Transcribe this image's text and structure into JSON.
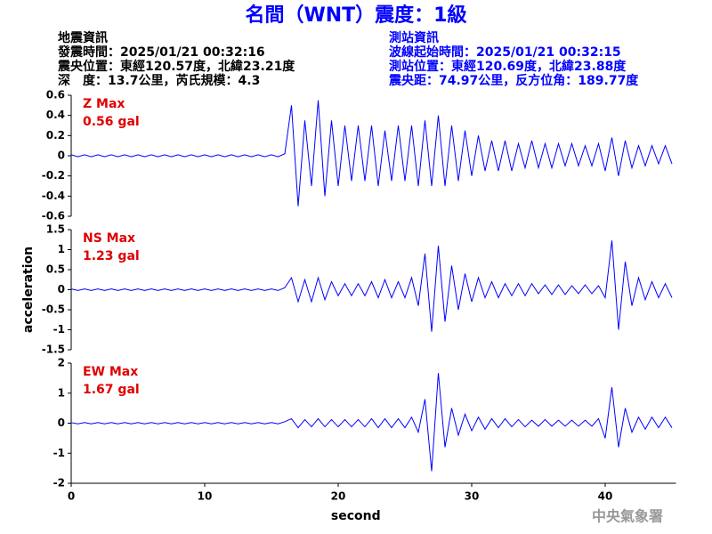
{
  "header": {
    "title": "名間（WNT）震度：1級",
    "left": [
      "地震資訊",
      "發震時間：2025/01/21 00:32:16",
      "震央位置：東經120.57度，北緯23.21度",
      "深　度：13.7公里，芮氏規模：4.3"
    ],
    "right": [
      "測站資訊",
      "波線起始時間：2025/01/21 00:32:15",
      "測站位置：東經120.69度，北緯23.88度",
      "震央距：74.97公里，反方位角：189.77度"
    ],
    "watermark": "中央氣象署"
  },
  "chart_data": [
    {
      "type": "line",
      "annotations": [
        "Z Max",
        "0.56 gal"
      ],
      "color": "#0000ff",
      "xlim": [
        0,
        45.3
      ],
      "ylim": [
        -0.6,
        0.6
      ],
      "yticks": [
        -0.6,
        -0.4,
        -0.2,
        0,
        0.2,
        0.4,
        0.6
      ],
      "x": [
        0,
        0.5,
        1,
        1.5,
        2,
        2.5,
        3,
        3.5,
        4,
        4.5,
        5,
        5.5,
        6,
        6.5,
        7,
        7.5,
        8,
        8.5,
        9,
        9.5,
        10,
        10.5,
        11,
        11.5,
        12,
        12.5,
        13,
        13.5,
        14,
        14.5,
        15,
        15.5,
        16,
        16.5,
        17,
        17.5,
        18,
        18.5,
        19,
        19.5,
        20,
        20.5,
        21,
        21.5,
        22,
        22.5,
        23,
        23.5,
        24,
        24.5,
        25,
        25.5,
        26,
        26.5,
        27,
        27.5,
        28,
        28.5,
        29,
        29.5,
        30,
        30.5,
        31,
        31.5,
        32,
        32.5,
        33,
        33.5,
        34,
        34.5,
        35,
        35.5,
        36,
        36.5,
        37,
        37.5,
        38,
        38.5,
        39,
        39.5,
        40,
        40.5,
        41,
        41.5,
        42,
        42.5,
        43,
        43.5,
        44,
        44.5,
        45
      ],
      "values": [
        0.01,
        -0.01,
        0.01,
        -0.01,
        0.01,
        -0.01,
        0.01,
        -0.01,
        0.01,
        -0.01,
        0.01,
        -0.01,
        0.01,
        -0.01,
        0.01,
        -0.01,
        0.01,
        -0.01,
        0.01,
        -0.01,
        0.01,
        -0.01,
        0.01,
        -0.01,
        0.01,
        -0.01,
        0.01,
        -0.01,
        0.01,
        -0.01,
        0.01,
        -0.01,
        0.02,
        0.5,
        -0.5,
        0.35,
        -0.3,
        0.55,
        -0.4,
        0.35,
        -0.3,
        0.3,
        -0.25,
        0.3,
        -0.25,
        0.3,
        -0.3,
        0.25,
        -0.25,
        0.3,
        -0.25,
        0.3,
        -0.3,
        0.35,
        -0.3,
        0.4,
        -0.3,
        0.3,
        -0.25,
        0.25,
        -0.2,
        0.2,
        -0.15,
        0.15,
        -0.15,
        0.15,
        -0.15,
        0.12,
        -0.12,
        0.15,
        -0.12,
        0.12,
        -0.12,
        0.12,
        -0.1,
        0.12,
        -0.1,
        0.1,
        -0.1,
        0.12,
        -0.15,
        0.18,
        -0.2,
        0.15,
        -0.12,
        0.1,
        -0.1,
        0.1,
        -0.08,
        0.1,
        -0.08
      ]
    },
    {
      "type": "line",
      "annotations": [
        "NS Max",
        "1.23 gal"
      ],
      "ylabel": "acceleration",
      "color": "#0000ff",
      "xlim": [
        0,
        45.3
      ],
      "ylim": [
        -1.5,
        1.5
      ],
      "yticks": [
        -1.5,
        -1,
        -0.5,
        0,
        0.5,
        1,
        1.5
      ],
      "x": [
        0,
        0.5,
        1,
        1.5,
        2,
        2.5,
        3,
        3.5,
        4,
        4.5,
        5,
        5.5,
        6,
        6.5,
        7,
        7.5,
        8,
        8.5,
        9,
        9.5,
        10,
        10.5,
        11,
        11.5,
        12,
        12.5,
        13,
        13.5,
        14,
        14.5,
        15,
        15.5,
        16,
        16.5,
        17,
        17.5,
        18,
        18.5,
        19,
        19.5,
        20,
        20.5,
        21,
        21.5,
        22,
        22.5,
        23,
        23.5,
        24,
        24.5,
        25,
        25.5,
        26,
        26.5,
        27,
        27.5,
        28,
        28.5,
        29,
        29.5,
        30,
        30.5,
        31,
        31.5,
        32,
        32.5,
        33,
        33.5,
        34,
        34.5,
        35,
        35.5,
        36,
        36.5,
        37,
        37.5,
        38,
        38.5,
        39,
        39.5,
        40,
        40.5,
        41,
        41.5,
        42,
        42.5,
        43,
        43.5,
        44,
        44.5,
        45
      ],
      "values": [
        0.02,
        -0.02,
        0.02,
        -0.02,
        0.02,
        -0.02,
        0.02,
        -0.02,
        0.02,
        -0.02,
        0.02,
        -0.02,
        0.02,
        -0.02,
        0.02,
        -0.02,
        0.02,
        -0.02,
        0.02,
        -0.02,
        0.02,
        -0.02,
        0.02,
        -0.02,
        0.02,
        -0.02,
        0.02,
        -0.02,
        0.02,
        -0.02,
        0.02,
        -0.02,
        0.05,
        0.3,
        -0.3,
        0.25,
        -0.3,
        0.3,
        -0.25,
        0.2,
        -0.15,
        0.15,
        -0.15,
        0.15,
        -0.15,
        0.2,
        -0.2,
        0.25,
        -0.2,
        0.2,
        -0.2,
        0.3,
        -0.4,
        0.9,
        -1.05,
        1.1,
        -0.8,
        0.6,
        -0.5,
        0.4,
        -0.3,
        0.3,
        -0.2,
        0.2,
        -0.2,
        0.15,
        -0.15,
        0.15,
        -0.15,
        0.15,
        -0.1,
        0.12,
        -0.12,
        0.12,
        -0.12,
        0.1,
        -0.1,
        0.12,
        -0.1,
        0.1,
        -0.2,
        1.23,
        -1.0,
        0.7,
        -0.4,
        0.3,
        -0.25,
        0.2,
        -0.2,
        0.15,
        -0.2
      ]
    },
    {
      "type": "line",
      "annotations": [
        "EW Max",
        "1.67 gal"
      ],
      "xlabel": "second",
      "color": "#0000ff",
      "xlim": [
        0,
        45.3
      ],
      "ylim": [
        -2,
        2
      ],
      "yticks": [
        -2,
        -1,
        0,
        1,
        2
      ],
      "xticks": [
        0,
        10,
        20,
        30,
        40
      ],
      "x": [
        0,
        0.5,
        1,
        1.5,
        2,
        2.5,
        3,
        3.5,
        4,
        4.5,
        5,
        5.5,
        6,
        6.5,
        7,
        7.5,
        8,
        8.5,
        9,
        9.5,
        10,
        10.5,
        11,
        11.5,
        12,
        12.5,
        13,
        13.5,
        14,
        14.5,
        15,
        15.5,
        16,
        16.5,
        17,
        17.5,
        18,
        18.5,
        19,
        19.5,
        20,
        20.5,
        21,
        21.5,
        22,
        22.5,
        23,
        23.5,
        24,
        24.5,
        25,
        25.5,
        26,
        26.5,
        27,
        27.5,
        28,
        28.5,
        29,
        29.5,
        30,
        30.5,
        31,
        31.5,
        32,
        32.5,
        33,
        33.5,
        34,
        34.5,
        35,
        35.5,
        36,
        36.5,
        37,
        37.5,
        38,
        38.5,
        39,
        39.5,
        40,
        40.5,
        41,
        41.5,
        42,
        42.5,
        43,
        43.5,
        44,
        44.5,
        45
      ],
      "values": [
        0.02,
        -0.02,
        0.02,
        -0.02,
        0.02,
        -0.02,
        0.02,
        -0.02,
        0.02,
        -0.02,
        0.02,
        -0.02,
        0.02,
        -0.02,
        0.02,
        -0.02,
        0.02,
        -0.02,
        0.02,
        -0.02,
        0.02,
        -0.02,
        0.02,
        -0.02,
        0.02,
        -0.02,
        0.02,
        -0.02,
        0.02,
        -0.02,
        0.02,
        -0.02,
        0.05,
        0.15,
        -0.15,
        0.12,
        -0.12,
        0.15,
        -0.12,
        0.12,
        -0.12,
        0.12,
        -0.12,
        0.12,
        -0.12,
        0.15,
        -0.15,
        0.15,
        -0.15,
        0.15,
        -0.15,
        0.2,
        -0.3,
        0.8,
        -1.6,
        1.67,
        -0.8,
        0.5,
        -0.4,
        0.3,
        -0.25,
        0.2,
        -0.2,
        0.15,
        -0.15,
        0.15,
        -0.12,
        0.12,
        -0.12,
        0.1,
        -0.1,
        0.12,
        -0.1,
        0.1,
        -0.1,
        0.1,
        -0.1,
        0.1,
        -0.1,
        0.15,
        -0.5,
        1.2,
        -0.8,
        0.5,
        -0.3,
        0.2,
        -0.2,
        0.2,
        -0.15,
        0.2,
        -0.15
      ]
    }
  ]
}
